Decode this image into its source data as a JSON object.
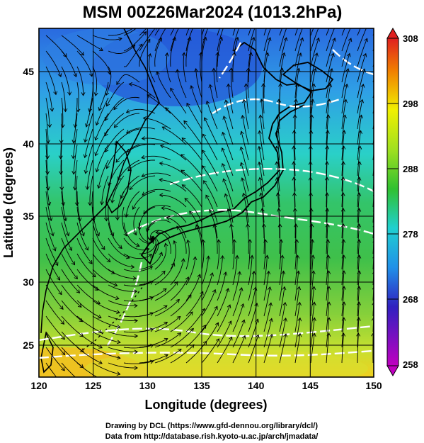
{
  "header": {
    "title": "MSM 00Z26Mar2024 (1013.2hPa)"
  },
  "map": {
    "xlabel": "Longitude (degrees)",
    "ylabel": "Latitude  (degrees)",
    "lon_range": [
      120,
      150
    ],
    "lat_range": [
      22.4,
      48
    ],
    "lon_ticks": [
      "120",
      "125",
      "130",
      "135",
      "140",
      "145",
      "150"
    ],
    "lat_ticks": [
      "25",
      "30",
      "35",
      "40",
      "45"
    ],
    "grid": true
  },
  "colorbar": {
    "ticks": [
      "308",
      "298",
      "288",
      "278",
      "268",
      "258"
    ],
    "range": [
      258,
      308
    ],
    "colors": [
      "#c000c0",
      "#3020c0",
      "#2090e8",
      "#20d0d0",
      "#30c030",
      "#a0e020",
      "#f0f000",
      "#f08000",
      "#e02020"
    ]
  },
  "credits": {
    "line1": "Drawing by DCL (https://www.gfd-dennou.org/library/dcl/)",
    "line2": "Data from http://database.rish.kyoto-u.ac.jp/arch/jmadata/"
  }
}
